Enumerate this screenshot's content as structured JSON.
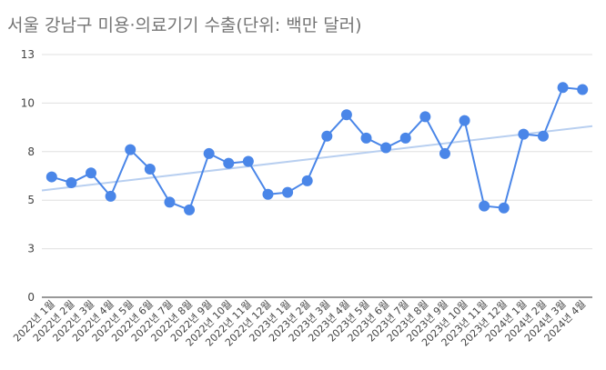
{
  "chart_data": {
    "type": "line",
    "title": "서울 강남구 미용·의료기기 수출(단위: 백만 달러)",
    "y_ticks": [
      "0",
      "3",
      "5",
      "8",
      "10",
      "13"
    ],
    "ylim": [
      0,
      12.5
    ],
    "grid": true,
    "trendline": true,
    "colors": {
      "series": "#4a86e8",
      "trend": "#b8cff0",
      "title": "#757575"
    },
    "categories": [
      "2022년 1월",
      "2022년 2월",
      "2022년 3월",
      "2022년 4월",
      "2022년 5월",
      "2022년 6월",
      "2022년 7월",
      "2022년 8월",
      "2022년 9월",
      "2022년 10월",
      "2022년 11월",
      "2022년 12월",
      "2023년 1월",
      "2023년 2월",
      "2023년 3월",
      "2023년 4월",
      "2023년 5월",
      "2023년 6월",
      "2023년 7월",
      "2023년 8월",
      "2023년 9월",
      "2023년 10월",
      "2023년 11월",
      "2023년 12월",
      "2024년 1월",
      "2024년 2월",
      "2024년 3월",
      "2024년 4월"
    ],
    "values": [
      6.2,
      5.9,
      6.4,
      5.2,
      7.6,
      6.6,
      4.9,
      4.5,
      7.4,
      6.9,
      7.0,
      5.3,
      5.4,
      6.0,
      8.3,
      9.4,
      8.2,
      7.7,
      8.2,
      9.3,
      7.4,
      9.1,
      4.7,
      4.6,
      8.4,
      8.3,
      10.8,
      10.7
    ]
  }
}
